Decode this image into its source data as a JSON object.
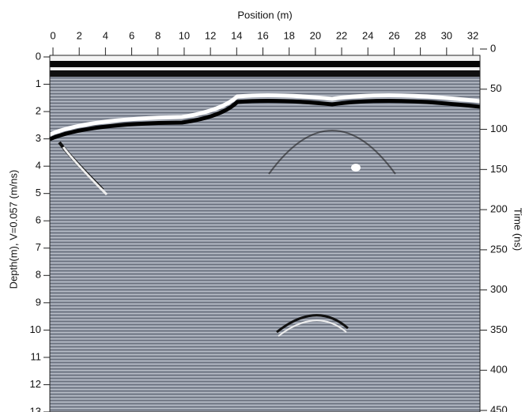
{
  "chart_data": {
    "type": "radargram",
    "xlabel": "Position (m)",
    "ylabel": "Depth(m), V=0.057 (m/ns)",
    "y2label": "Time (ns)",
    "xlim": [
      0,
      32
    ],
    "xticks": [
      0,
      2,
      4,
      6,
      8,
      10,
      12,
      14,
      16,
      18,
      20,
      22,
      24,
      26,
      28,
      30,
      32
    ],
    "ylim": [
      0,
      13
    ],
    "yticks": [
      0,
      1,
      2,
      3,
      4,
      5,
      6,
      7,
      8,
      9,
      10,
      11,
      12,
      13
    ],
    "y2lim": [
      0,
      450
    ],
    "y2ticks": [
      0,
      50,
      100,
      150,
      200,
      250,
      300,
      350,
      400,
      450
    ]
  }
}
